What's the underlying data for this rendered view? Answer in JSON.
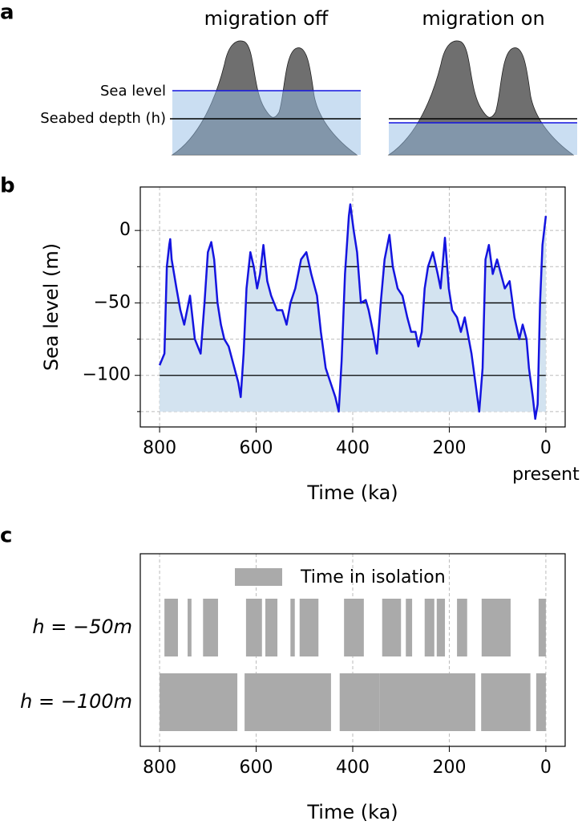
{
  "panel_a": {
    "label": "a",
    "titles": [
      "migration off",
      "migration on"
    ],
    "sea_level_label": "Sea level",
    "seabed_label": "Seabed depth (h)"
  },
  "chart_data": [
    {
      "type": "line",
      "panel_label": "b",
      "ylabel": "Sea level (m)",
      "xlabel": "Time (ka)",
      "x_note": "present",
      "xlim": [
        840,
        -40
      ],
      "ylim": [
        30,
        -135.6
      ],
      "xticks": [
        800,
        600,
        400,
        200,
        0
      ],
      "yticks": [
        {
          "value": 0,
          "label": "0"
        },
        {
          "value": -50,
          "label": "−50"
        },
        {
          "value": -100,
          "label": "−100"
        }
      ],
      "yminor": [
        -25,
        -75,
        -125
      ],
      "grid": true,
      "fill_base": -125,
      "fill_color": "#d3e3f0",
      "levels": [
        -25,
        -50,
        -75,
        -100
      ],
      "color": "#1414e0",
      "x": [
        800,
        790,
        785,
        780,
        778,
        775,
        765,
        757,
        749,
        737,
        727,
        715,
        707,
        700,
        693,
        687,
        680,
        673,
        666,
        657,
        649,
        637,
        632,
        626,
        620,
        612,
        605,
        598,
        592,
        585,
        577,
        569,
        557,
        546,
        537,
        529,
        519,
        507,
        496,
        486,
        474,
        466,
        456,
        446,
        436,
        429,
        423,
        416,
        408,
        405,
        398,
        391,
        383,
        373,
        367,
        358,
        350,
        342,
        334,
        324,
        317,
        307,
        297,
        287,
        279,
        270,
        264,
        257,
        251,
        244,
        234,
        224,
        218,
        209,
        201,
        194,
        184,
        176,
        168,
        154,
        146,
        138,
        131,
        125,
        118,
        110,
        101,
        93,
        85,
        75,
        65,
        55,
        48,
        40,
        35,
        27,
        22,
        17,
        12,
        7,
        0
      ],
      "values": [
        -93,
        -85,
        -25,
        -10,
        -6,
        -20,
        -40,
        -55,
        -65,
        -45,
        -75,
        -85,
        -50,
        -15,
        -8,
        -20,
        -50,
        -65,
        -75,
        -80,
        -90,
        -105,
        -115,
        -85,
        -40,
        -15,
        -25,
        -40,
        -30,
        -10,
        -35,
        -45,
        -55,
        -55,
        -65,
        -50,
        -40,
        -20,
        -15,
        -30,
        -45,
        -70,
        -95,
        -105,
        -115,
        -125,
        -90,
        -30,
        10,
        18,
        0,
        -15,
        -50,
        -48,
        -55,
        -70,
        -85,
        -50,
        -20,
        -3,
        -25,
        -40,
        -45,
        -60,
        -70,
        -70,
        -80,
        -70,
        -40,
        -25,
        -15,
        -30,
        -40,
        -5,
        -40,
        -55,
        -60,
        -70,
        -60,
        -85,
        -105,
        -125,
        -95,
        -20,
        -10,
        -30,
        -20,
        -30,
        -40,
        -35,
        -60,
        -75,
        -65,
        -75,
        -95,
        -115,
        -130,
        -120,
        -50,
        -10,
        10
      ]
    },
    {
      "type": "intervals",
      "panel_label": "c",
      "xlabel": "Time (ka)",
      "xlim": [
        840,
        -40
      ],
      "xticks": [
        800,
        600,
        400,
        200,
        0
      ],
      "grid": true,
      "legend": "Time in isolation",
      "color": "#aaaaaa",
      "rows": [
        {
          "label": "h = −50m",
          "intervals": [
            [
              790,
              762
            ],
            [
              742,
              734
            ],
            [
              710,
              679
            ],
            [
              621,
              588
            ],
            [
              581,
              556
            ],
            [
              529,
              520
            ],
            [
              510,
              471
            ],
            [
              418,
              377
            ],
            [
              339,
              300
            ],
            [
              290,
              277
            ],
            [
              251,
              231
            ],
            [
              226,
              209
            ],
            [
              184,
              163
            ],
            [
              133,
              73
            ],
            [
              15,
              0
            ]
          ]
        },
        {
          "label": "h = −100m",
          "intervals": [
            [
              800,
              639
            ],
            [
              624,
              445
            ],
            [
              427,
              344
            ],
            [
              344,
              146
            ],
            [
              134,
              32
            ],
            [
              20,
              0
            ]
          ]
        }
      ]
    }
  ]
}
